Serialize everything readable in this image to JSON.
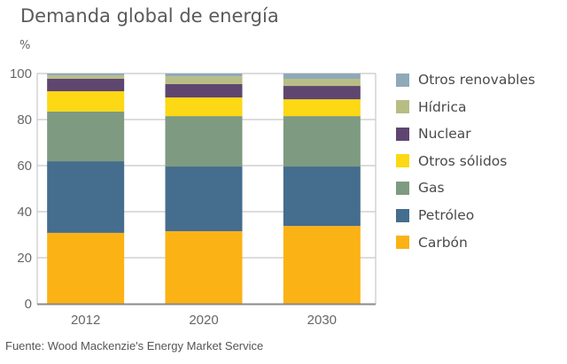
{
  "chart_data": {
    "type": "bar",
    "stacked": true,
    "title": "Demanda global de energía",
    "ylabel": "%",
    "xlabel": "",
    "ylim": [
      0,
      100
    ],
    "yticks": [
      0,
      20,
      40,
      60,
      80,
      100
    ],
    "grid": true,
    "legend_position": "right",
    "categories": [
      "2012",
      "2020",
      "2030"
    ],
    "series": [
      {
        "name": "Carbón",
        "color": "#fbb215",
        "values": [
          30.8,
          31.5,
          33.8
        ]
      },
      {
        "name": "Petróleo",
        "color": "#456d8e",
        "values": [
          31.1,
          28.1,
          25.8
        ]
      },
      {
        "name": "Gas",
        "color": "#7e9a80",
        "values": [
          21.6,
          21.9,
          21.9
        ]
      },
      {
        "name": "Otros sólidos",
        "color": "#fcd815",
        "values": [
          8.8,
          8.1,
          7.3
        ]
      },
      {
        "name": "Nuclear",
        "color": "#5e4670",
        "values": [
          5.4,
          5.8,
          5.8
        ]
      },
      {
        "name": "Hídrica",
        "color": "#b8bd85",
        "values": [
          1.5,
          3.4,
          3.1
        ]
      },
      {
        "name": "Otros renovables",
        "color": "#8fa9b8",
        "values": [
          0.8,
          1.2,
          2.3
        ]
      }
    ],
    "legend_order": [
      "Otros renovables",
      "Hídrica",
      "Nuclear",
      "Otros sólidos",
      "Gas",
      "Petróleo",
      "Carbón"
    ],
    "source": "Fuente: Wood Mackenzie's Energy Market Service"
  }
}
